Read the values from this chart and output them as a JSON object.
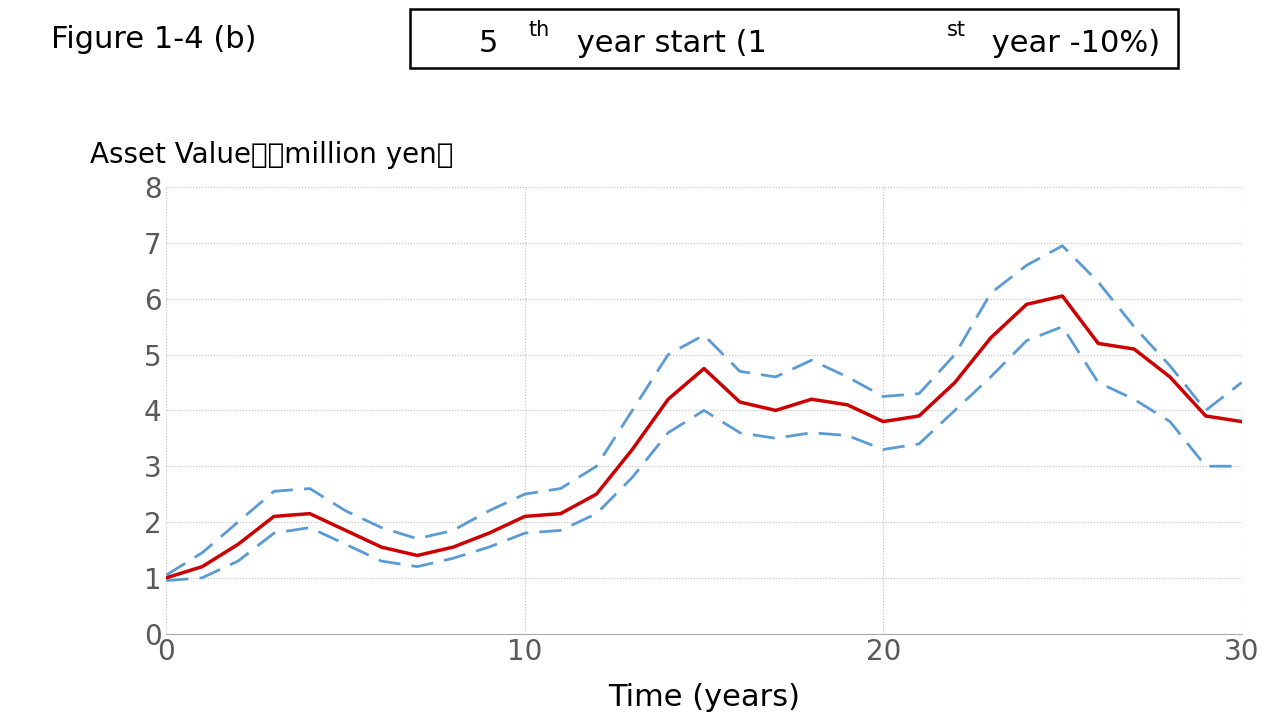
{
  "title_left": "Figure 1-4 (b)",
  "ylabel": "Asset Value　（million yen）",
  "xlabel": "Time (years)",
  "xlim": [
    0,
    30
  ],
  "ylim": [
    0,
    8
  ],
  "xticks": [
    0,
    10,
    20,
    30
  ],
  "yticks": [
    0,
    1,
    2,
    3,
    4,
    5,
    6,
    7,
    8
  ],
  "red_line_color": "#cc0000",
  "blue_dashed_color": "#5b9bd5",
  "background_color": "#ffffff",
  "x": [
    0,
    1,
    2,
    3,
    4,
    5,
    6,
    7,
    8,
    9,
    10,
    11,
    12,
    13,
    14,
    15,
    16,
    17,
    18,
    19,
    20,
    21,
    22,
    23,
    24,
    25,
    26,
    27,
    28,
    29,
    30
  ],
  "red": [
    1.0,
    1.2,
    1.6,
    2.1,
    2.15,
    1.85,
    1.55,
    1.4,
    1.55,
    1.8,
    2.1,
    2.15,
    2.5,
    3.3,
    4.2,
    4.75,
    4.15,
    4.0,
    4.2,
    4.1,
    3.8,
    3.9,
    4.5,
    5.3,
    5.9,
    6.05,
    5.2,
    5.1,
    4.6,
    3.9,
    3.8
  ],
  "upper": [
    1.05,
    1.45,
    2.0,
    2.55,
    2.6,
    2.2,
    1.9,
    1.7,
    1.85,
    2.2,
    2.5,
    2.6,
    3.0,
    4.0,
    5.0,
    5.35,
    4.7,
    4.6,
    4.9,
    4.6,
    4.25,
    4.3,
    5.0,
    6.1,
    6.6,
    6.95,
    6.3,
    5.5,
    4.8,
    4.0,
    4.5
  ],
  "lower": [
    0.95,
    1.0,
    1.3,
    1.8,
    1.9,
    1.6,
    1.3,
    1.2,
    1.35,
    1.55,
    1.8,
    1.85,
    2.15,
    2.8,
    3.6,
    4.0,
    3.6,
    3.5,
    3.6,
    3.55,
    3.3,
    3.4,
    4.0,
    4.6,
    5.25,
    5.5,
    4.5,
    4.2,
    3.8,
    3.0,
    3.0
  ],
  "tick_color": "#595959",
  "grid_color": "#bfbfbf"
}
